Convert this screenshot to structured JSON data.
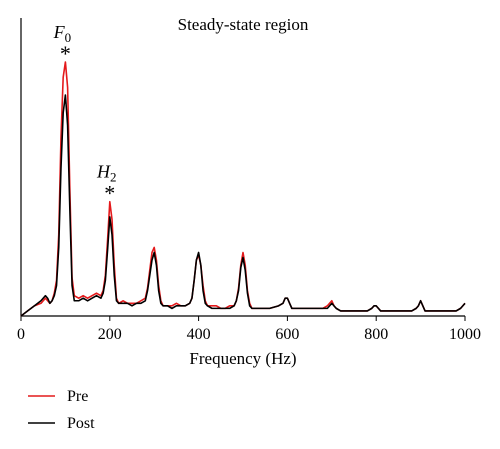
{
  "chart_data": {
    "type": "line",
    "title": "Steady-state region",
    "xlabel": "Frequency (Hz)",
    "ylabel": "",
    "xlim": [
      0,
      1000
    ],
    "ylim": [
      0,
      1.0
    ],
    "x_ticks": [
      0,
      200,
      400,
      600,
      800,
      1000
    ],
    "grid": false,
    "legend_position": "bottom-left",
    "annotations": [
      {
        "base": "F",
        "sub": "0",
        "mark": "*",
        "x": 100
      },
      {
        "base": "H",
        "sub": "2",
        "mark": "*",
        "x": 200
      }
    ],
    "x": [
      0,
      15,
      30,
      45,
      55,
      60,
      65,
      70,
      75,
      80,
      85,
      90,
      95,
      100,
      105,
      110,
      115,
      120,
      130,
      140,
      150,
      160,
      170,
      180,
      185,
      190,
      195,
      200,
      205,
      210,
      215,
      220,
      230,
      240,
      250,
      260,
      270,
      280,
      285,
      290,
      295,
      300,
      305,
      310,
      315,
      320,
      330,
      340,
      350,
      360,
      370,
      380,
      385,
      390,
      395,
      400,
      405,
      410,
      415,
      420,
      430,
      440,
      450,
      460,
      470,
      480,
      485,
      490,
      495,
      500,
      505,
      510,
      515,
      520,
      540,
      560,
      580,
      590,
      595,
      600,
      605,
      610,
      620,
      640,
      660,
      680,
      690,
      695,
      700,
      705,
      710,
      720,
      740,
      760,
      780,
      790,
      795,
      800,
      805,
      810,
      820,
      840,
      860,
      880,
      890,
      895,
      900,
      905,
      910,
      920,
      940,
      960,
      980,
      990,
      995,
      1000
    ],
    "series": [
      {
        "name": "Pre",
        "color": "#e41a1c",
        "values": [
          0.0,
          0.02,
          0.04,
          0.05,
          0.07,
          0.06,
          0.05,
          0.06,
          0.09,
          0.14,
          0.32,
          0.7,
          0.94,
          1.0,
          0.9,
          0.5,
          0.15,
          0.08,
          0.07,
          0.08,
          0.07,
          0.08,
          0.09,
          0.08,
          0.1,
          0.16,
          0.3,
          0.45,
          0.38,
          0.2,
          0.07,
          0.05,
          0.06,
          0.05,
          0.05,
          0.05,
          0.06,
          0.07,
          0.11,
          0.18,
          0.25,
          0.27,
          0.22,
          0.12,
          0.06,
          0.04,
          0.04,
          0.04,
          0.05,
          0.04,
          0.04,
          0.05,
          0.07,
          0.14,
          0.22,
          0.24,
          0.2,
          0.12,
          0.06,
          0.04,
          0.04,
          0.04,
          0.03,
          0.03,
          0.04,
          0.04,
          0.06,
          0.11,
          0.2,
          0.25,
          0.2,
          0.1,
          0.05,
          0.03,
          0.03,
          0.03,
          0.04,
          0.05,
          0.07,
          0.07,
          0.05,
          0.03,
          0.03,
          0.03,
          0.03,
          0.03,
          0.04,
          0.05,
          0.06,
          0.04,
          0.03,
          0.02,
          0.02,
          0.02,
          0.02,
          0.03,
          0.04,
          0.04,
          0.03,
          0.02,
          0.02,
          0.02,
          0.02,
          0.02,
          0.03,
          0.04,
          0.06,
          0.04,
          0.02,
          0.02,
          0.02,
          0.02,
          0.02,
          0.03,
          0.04,
          0.05
        ]
      },
      {
        "name": "Post",
        "color": "#000000",
        "values": [
          0.0,
          0.02,
          0.04,
          0.06,
          0.08,
          0.07,
          0.05,
          0.06,
          0.08,
          0.12,
          0.27,
          0.58,
          0.8,
          0.87,
          0.75,
          0.42,
          0.12,
          0.06,
          0.06,
          0.07,
          0.06,
          0.07,
          0.08,
          0.07,
          0.09,
          0.14,
          0.26,
          0.39,
          0.32,
          0.16,
          0.06,
          0.05,
          0.05,
          0.05,
          0.04,
          0.05,
          0.05,
          0.06,
          0.1,
          0.16,
          0.22,
          0.25,
          0.2,
          0.1,
          0.05,
          0.04,
          0.04,
          0.03,
          0.04,
          0.04,
          0.04,
          0.05,
          0.07,
          0.14,
          0.22,
          0.25,
          0.2,
          0.1,
          0.05,
          0.04,
          0.03,
          0.03,
          0.03,
          0.03,
          0.03,
          0.04,
          0.06,
          0.1,
          0.19,
          0.23,
          0.18,
          0.09,
          0.04,
          0.03,
          0.03,
          0.03,
          0.04,
          0.05,
          0.07,
          0.07,
          0.05,
          0.03,
          0.03,
          0.03,
          0.03,
          0.03,
          0.03,
          0.04,
          0.05,
          0.04,
          0.03,
          0.02,
          0.02,
          0.02,
          0.02,
          0.03,
          0.04,
          0.04,
          0.03,
          0.02,
          0.02,
          0.02,
          0.02,
          0.02,
          0.03,
          0.04,
          0.06,
          0.04,
          0.02,
          0.02,
          0.02,
          0.02,
          0.02,
          0.03,
          0.04,
          0.05
        ]
      }
    ]
  }
}
